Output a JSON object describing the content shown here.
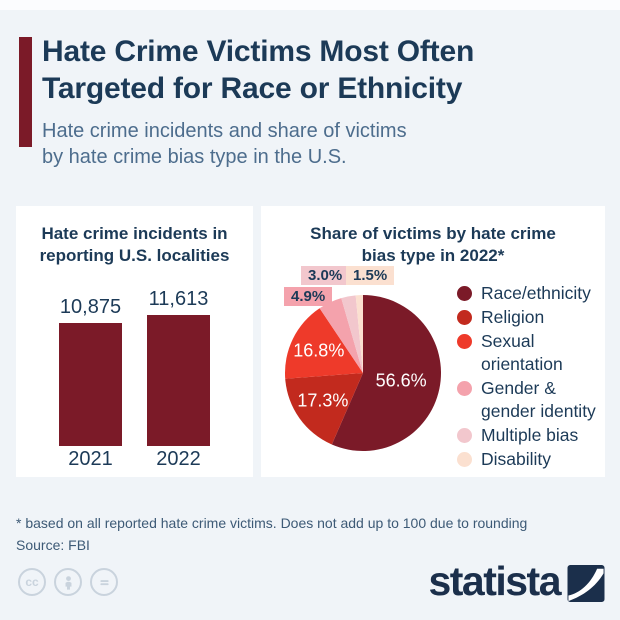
{
  "header": {
    "title_line1": "Hate Crime Victims Most Often",
    "title_line2": "Targeted for Race or Ethnicity",
    "subtitle_line1": "Hate crime incidents and share of victims",
    "subtitle_line2": "by hate crime bias type in the U.S."
  },
  "chart_data": [
    {
      "type": "bar",
      "title": "Hate crime incidents in reporting U.S. localities",
      "categories": [
        "2021",
        "2022"
      ],
      "values": [
        10875,
        11613
      ],
      "value_labels": [
        "10,875",
        "11,613"
      ],
      "bar_color": "#7b1a28",
      "ylim": [
        0,
        11613
      ],
      "grid": false
    },
    {
      "type": "pie",
      "title": "Share of victims by hate crime bias type in 2022*",
      "labels": [
        "Race/ethnicity",
        "Religion",
        "Sexual orientation",
        "Gender & gender identity",
        "Multiple bias",
        "Disability"
      ],
      "values": [
        56.6,
        17.3,
        16.8,
        4.9,
        3.0,
        1.5
      ],
      "value_labels": [
        "56.6%",
        "17.3%",
        "16.8%",
        "4.9%",
        "3.0%",
        "1.5%"
      ],
      "colors": [
        "#7b1a28",
        "#c22a1e",
        "#ee3a2a",
        "#f4a2ac",
        "#f2c7cd",
        "#fbe0d0"
      ],
      "start_angle": 0,
      "direction": "clockwise",
      "legend_position": "right"
    }
  ],
  "footnote": "* based on all reported hate crime victims. Does not add up to 100 due to rounding",
  "source": "Source: FBI",
  "branding": {
    "logo_text": "statista"
  },
  "license": {
    "cc_label": "cc"
  },
  "colors": {
    "background": "#f0f4f8",
    "card": "#ffffff",
    "accent": "#7b1a28",
    "heading": "#1c3a57",
    "subtitle": "#4d6d8d",
    "footnote": "#3d5a76",
    "logo": "#1b2f4b",
    "license_icons": "#c9d3dd"
  }
}
